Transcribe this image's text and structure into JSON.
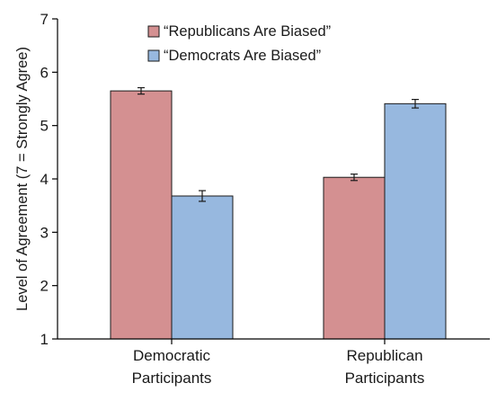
{
  "chart_data": {
    "type": "bar",
    "ylabel": "Level of Agreement  (7 = Strongly Agree)",
    "ylim": [
      1,
      7
    ],
    "yticks": [
      "1",
      "2",
      "3",
      "4",
      "5",
      "6",
      "7"
    ],
    "categories": [
      {
        "line1": "Democratic",
        "line2": "Participants"
      },
      {
        "line1": "Republican",
        "line2": "Participants"
      }
    ],
    "series": [
      {
        "name": "“Republicans Are Biased”",
        "color": "#d49091",
        "values": [
          5.65,
          4.03
        ],
        "errors": [
          0.06,
          0.06
        ]
      },
      {
        "name": "“Democrats Are Biased”",
        "color": "#97b8df",
        "values": [
          3.68,
          5.41
        ],
        "errors": [
          0.1,
          0.08
        ]
      }
    ],
    "legend_position": "top-center",
    "grid": false
  }
}
